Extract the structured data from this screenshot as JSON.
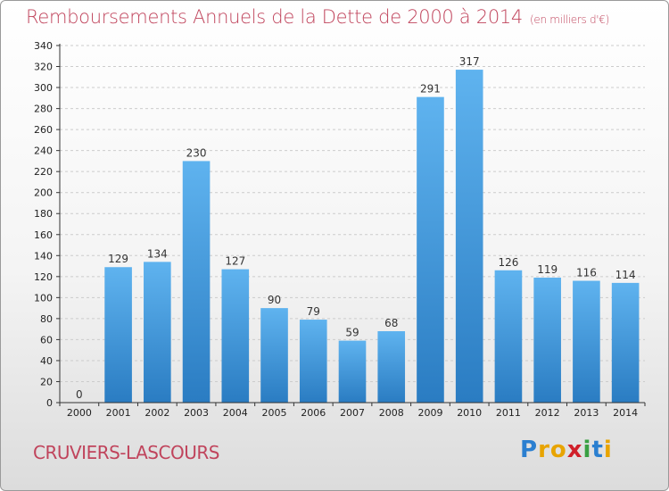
{
  "title": "Remboursements Annuels de la Dette de 2000 à 2014",
  "unit": "(en milliers d'€)",
  "commune": "CRUVIERS-LASCOURS",
  "logo": {
    "text": "Proxiti",
    "letters": [
      "P",
      "r",
      "o",
      "x",
      "i",
      "t",
      "i"
    ],
    "colors": [
      "#2b7fd0",
      "#e8a400",
      "#e8a400",
      "#d0202a",
      "#3aa043",
      "#2b7fd0",
      "#e8a400"
    ]
  },
  "colors": {
    "bar_top": "#5fb3ef",
    "bar_bottom": "#2a7cc2",
    "title": "#c0445c",
    "grid": "#cccccc"
  },
  "chart_data": {
    "type": "bar",
    "categories": [
      "2000",
      "2001",
      "2002",
      "2003",
      "2004",
      "2005",
      "2006",
      "2007",
      "2008",
      "2009",
      "2010",
      "2011",
      "2012",
      "2013",
      "2014"
    ],
    "values": [
      0,
      129,
      134,
      230,
      127,
      90,
      79,
      59,
      68,
      291,
      317,
      126,
      119,
      116,
      114
    ],
    "yticks": [
      0,
      20,
      40,
      60,
      80,
      100,
      120,
      140,
      160,
      180,
      200,
      220,
      240,
      260,
      280,
      300,
      320,
      340
    ],
    "ylim": [
      0,
      340
    ],
    "grid": true,
    "title": "Remboursements Annuels de la Dette de 2000 à 2014",
    "xlabel": "",
    "ylabel": ""
  }
}
